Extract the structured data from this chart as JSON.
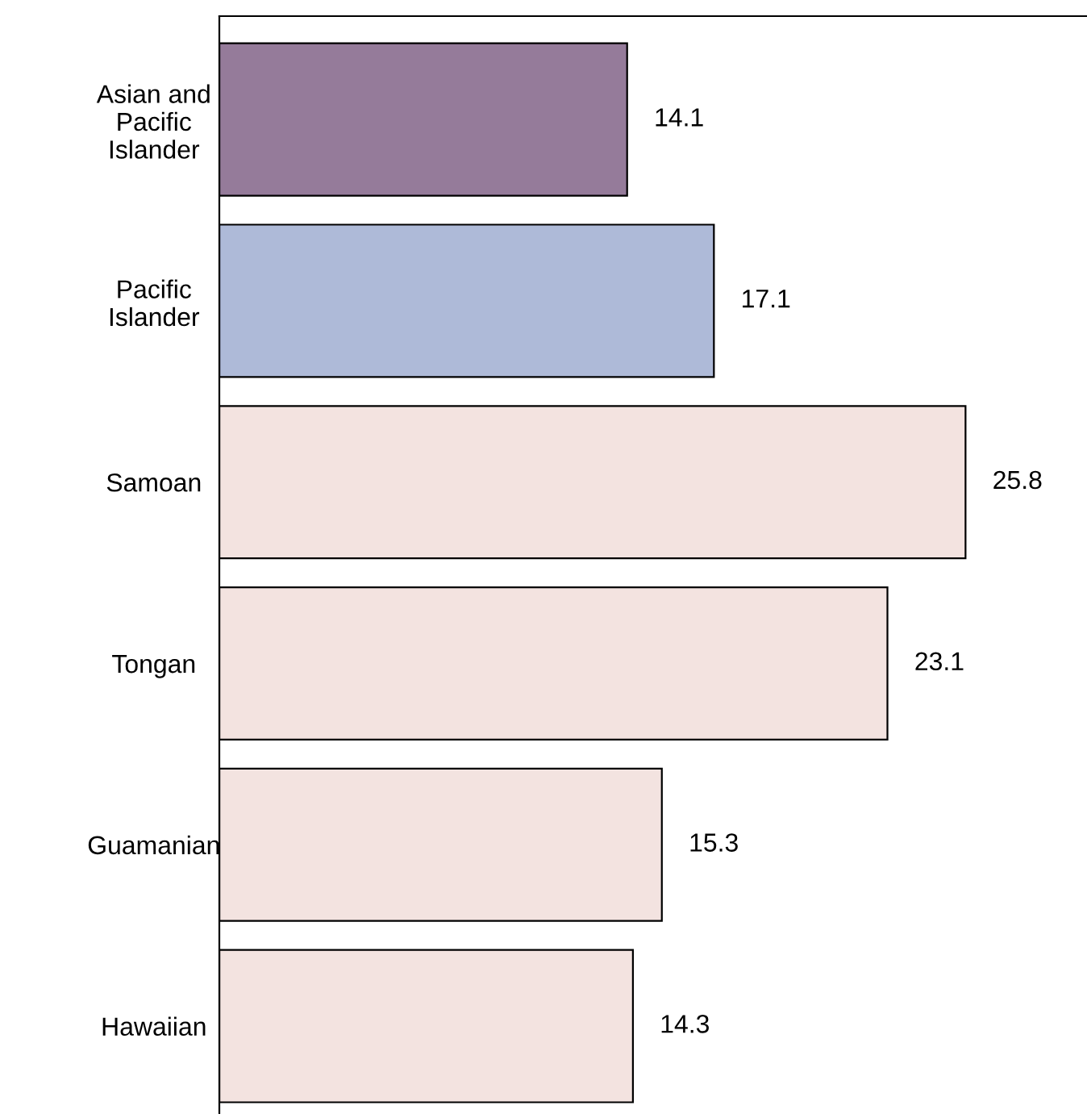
{
  "chart_data": {
    "type": "bar",
    "orientation": "horizontal",
    "categories": [
      "Asian and\nPacific\nIslander",
      "Pacific\nIslander",
      "Samoan",
      "Tongan",
      "Guamanian",
      "Hawaiian"
    ],
    "values": [
      14.1,
      17.1,
      25.8,
      23.1,
      15.3,
      14.3
    ],
    "colors": [
      "#957b9a",
      "#aebad8",
      "#f3e3e0",
      "#f3e3e0",
      "#f3e3e0",
      "#f3e3e0"
    ],
    "xlim": [
      0,
      30
    ],
    "data_labels": true,
    "tick_labels": "y"
  }
}
